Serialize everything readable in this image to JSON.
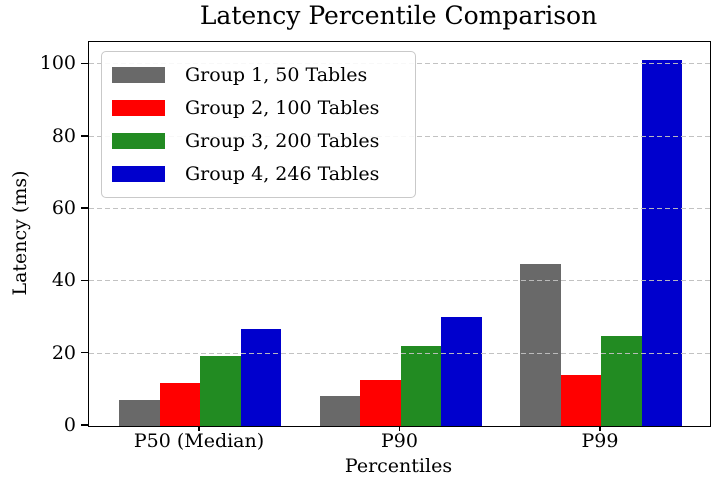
{
  "chart_data": {
    "type": "bar",
    "title": "Latency Percentile Comparison",
    "xlabel": "Percentiles",
    "ylabel": "Latency (ms)",
    "categories": [
      "P50 (Median)",
      "P90",
      "P99"
    ],
    "series": [
      {
        "name": "Group 1, 50 Tables",
        "color": "#696969",
        "values": [
          7.2,
          8.4,
          44.8
        ]
      },
      {
        "name": "Group 2, 100 Tables",
        "color": "#ff0000",
        "values": [
          11.9,
          12.8,
          14.1
        ]
      },
      {
        "name": "Group 3, 200 Tables",
        "color": "#228b22",
        "values": [
          19.5,
          22.0,
          24.9
        ]
      },
      {
        "name": "Group 4, 246 Tables",
        "color": "#0000cd",
        "values": [
          26.9,
          30.1,
          101.3
        ]
      }
    ],
    "ylim": [
      0,
      106.2
    ],
    "yticks": [
      0,
      20,
      40,
      60,
      80,
      100
    ],
    "grid": "horizontal dashed gridlines drawn over bars",
    "legend_position": "upper left",
    "gridline_color": "#bfbfbf",
    "text_color": "#000000",
    "background_color": "#ffffff"
  }
}
